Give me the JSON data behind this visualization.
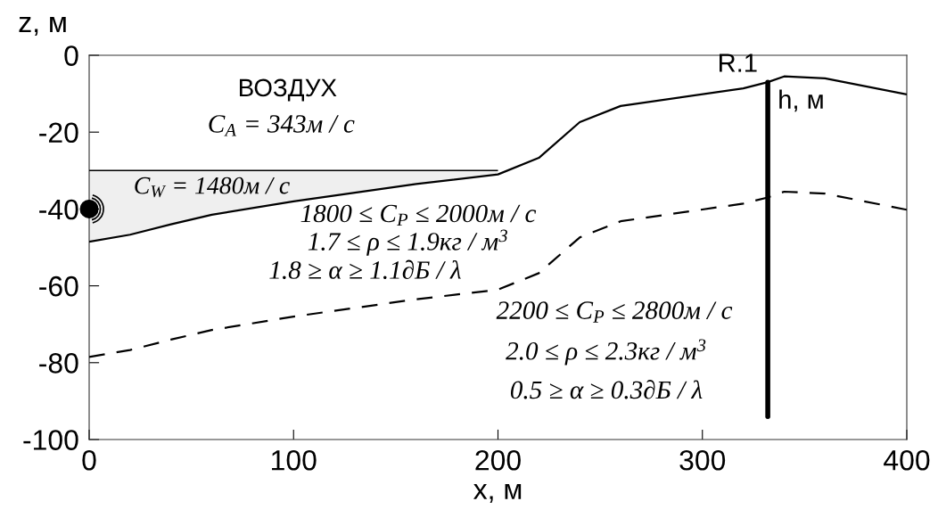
{
  "chart_data": {
    "type": "line",
    "xlabel": "x, м",
    "ylabel": "z, м",
    "xlim": [
      0,
      400
    ],
    "xticks": [
      0,
      100,
      200,
      300,
      400
    ],
    "ylim": [
      -100,
      0
    ],
    "yticks": [
      -100,
      -80,
      -60,
      -40,
      -20,
      0
    ],
    "grid": false,
    "series": [
      {
        "color": "#000000",
        "line_style": "solid",
        "x": [
          0,
          20,
          40,
          60,
          100,
          160,
          200
        ],
        "values": [
          -30,
          -30,
          -30,
          -30,
          -30,
          -30,
          -30
        ],
        "lower": [
          -48.5,
          -46.7,
          -44,
          -41.5,
          -38,
          -33.5,
          -31
        ],
        "upper": [
          -30,
          -30,
          -30,
          -30,
          -30,
          -30,
          -30
        ]
      },
      {
        "color": "#000000",
        "line_style": "solid",
        "x": [
          0,
          20,
          40,
          60,
          100,
          160,
          200,
          220,
          240,
          260,
          320,
          332,
          340,
          360,
          400
        ],
        "values": [
          -48.5,
          -46.7,
          -44,
          -41.5,
          -38,
          -33.5,
          -31,
          -26.7,
          -17.4,
          -13.2,
          -8.6,
          -7,
          -5.5,
          -6,
          -10.2
        ]
      },
      {
        "color": "#000000",
        "line_style": "dashed",
        "x": [
          0,
          20,
          40,
          60,
          100,
          160,
          200,
          220,
          240,
          260,
          320,
          332,
          340,
          360,
          400
        ],
        "values": [
          -78.5,
          -76.7,
          -74,
          -71.5,
          -68,
          -63.5,
          -61,
          -56.7,
          -47.4,
          -43.2,
          -38.6,
          -37,
          -35.5,
          -36,
          -40.2
        ]
      },
      {
        "color": "#000000",
        "line_style": "solid",
        "x": [
          332,
          332
        ],
        "values": [
          -7,
          -94
        ]
      },
      {
        "type": "scatter",
        "color": "#000000",
        "marker": "circle",
        "x": [
          0
        ],
        "values": [
          -40
        ]
      }
    ],
    "annotations": [
      "ВОЗДУХ",
      "C$_{A}$ = 343м / с",
      "C$_{W}$ = 1480м / с",
      "1800 ≤ C$_{P}$ ≤ 2000м / с",
      "1.7 ≤ ρ ≤ 1.9кг / м$^{3}$",
      "1.8 ≥ α ≥ 1.1∂Б / λ",
      "2200 ≤ C$_{P}$ ≤ 2800м / с",
      "2.0 ≤ ρ ≤ 2.3кг / м$^{3}$",
      "0.5 ≥ α ≥ 0.3∂Б / λ",
      {
        "text": "R.1",
        "x": 332,
        "y": -7
      },
      {
        "text": "h, м",
        "x": 332,
        "y": -7
      }
    ]
  }
}
